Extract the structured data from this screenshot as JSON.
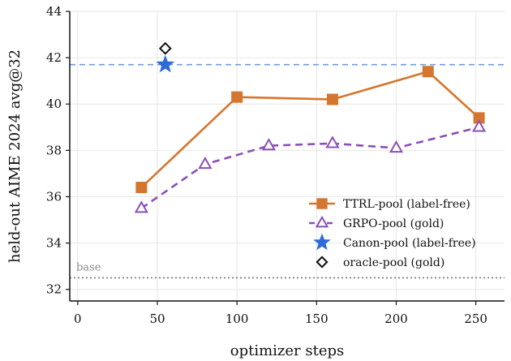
{
  "chart_data": {
    "type": "line",
    "xlabel": "optimizer steps",
    "ylabel": "held-out AIME 2024 avg@32",
    "xlim": [
      -5,
      268
    ],
    "ylim": [
      31.5,
      44
    ],
    "xticks": [
      0,
      50,
      100,
      150,
      200,
      250
    ],
    "yticks": [
      32,
      34,
      36,
      38,
      40,
      42,
      44
    ],
    "grid": true,
    "legend": "lower-right",
    "series": [
      {
        "name": "TTRL-pool (label-free)",
        "marker": "square",
        "line": "solid",
        "color": "#d4762e",
        "x": [
          40,
          100,
          160,
          220,
          252
        ],
        "y": [
          36.4,
          40.3,
          40.2,
          41.4,
          39.4
        ]
      },
      {
        "name": "GRPO-pool (gold)",
        "marker": "triangle-open",
        "line": "dashed",
        "color": "#8b4fb8",
        "x": [
          40,
          80,
          120,
          160,
          200,
          252
        ],
        "y": [
          35.5,
          37.4,
          38.2,
          38.3,
          38.1,
          39.0
        ]
      },
      {
        "name": "Canon-pool (label-free)",
        "marker": "star",
        "line": "none",
        "color": "#2f6bd8",
        "x": [
          55
        ],
        "y": [
          41.7
        ]
      },
      {
        "name": "oracle-pool (gold)",
        "marker": "diamond-open",
        "line": "none",
        "color": "#111111",
        "x": [
          55
        ],
        "y": [
          42.4
        ]
      }
    ],
    "reference_lines": [
      {
        "y": 41.7,
        "style": "dashed",
        "color": "#6f9be0",
        "label": ""
      },
      {
        "y": 32.5,
        "style": "dotted",
        "color": "#777777",
        "label": "base"
      }
    ]
  }
}
